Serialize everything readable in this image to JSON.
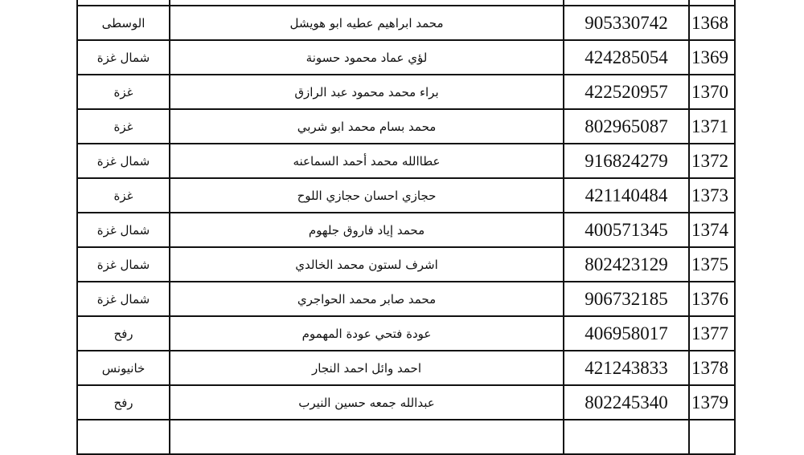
{
  "rows": [
    {
      "num": "1368",
      "id": "905330742",
      "name": "محمد ابراهيم عطيه ابو هويشل",
      "region": "الوسطى"
    },
    {
      "num": "1369",
      "id": "424285054",
      "name": "لؤي عماد محمود حسونة",
      "region": "شمال غزة"
    },
    {
      "num": "1370",
      "id": "422520957",
      "name": "براء محمد محمود عبد الرازق",
      "region": "غزة"
    },
    {
      "num": "1371",
      "id": "802965087",
      "name": "محمد بسام محمد ابو شربي",
      "region": "غزة"
    },
    {
      "num": "1372",
      "id": "916824279",
      "name": "عطاالله محمد أحمد السماعنه",
      "region": "شمال غزة"
    },
    {
      "num": "1373",
      "id": "421140484",
      "name": "حجازي احسان حجازي اللوح",
      "region": "غزة"
    },
    {
      "num": "1374",
      "id": "400571345",
      "name": "محمد إياد فاروق جلهوم",
      "region": "شمال غزة"
    },
    {
      "num": "1375",
      "id": "802423129",
      "name": "اشرف لستون محمد الخالدي",
      "region": "شمال غزة"
    },
    {
      "num": "1376",
      "id": "906732185",
      "name": "محمد صابر محمد الحواجري",
      "region": "شمال غزة"
    },
    {
      "num": "1377",
      "id": "406958017",
      "name": "عودة فتحي عودة المهموم",
      "region": "رفح"
    },
    {
      "num": "1378",
      "id": "421243833",
      "name": "احمد وائل احمد النجار",
      "region": "خانيونس"
    },
    {
      "num": "1379",
      "id": "802245340",
      "name": "عبدالله جمعه حسين النيرب",
      "region": "رفح"
    }
  ]
}
